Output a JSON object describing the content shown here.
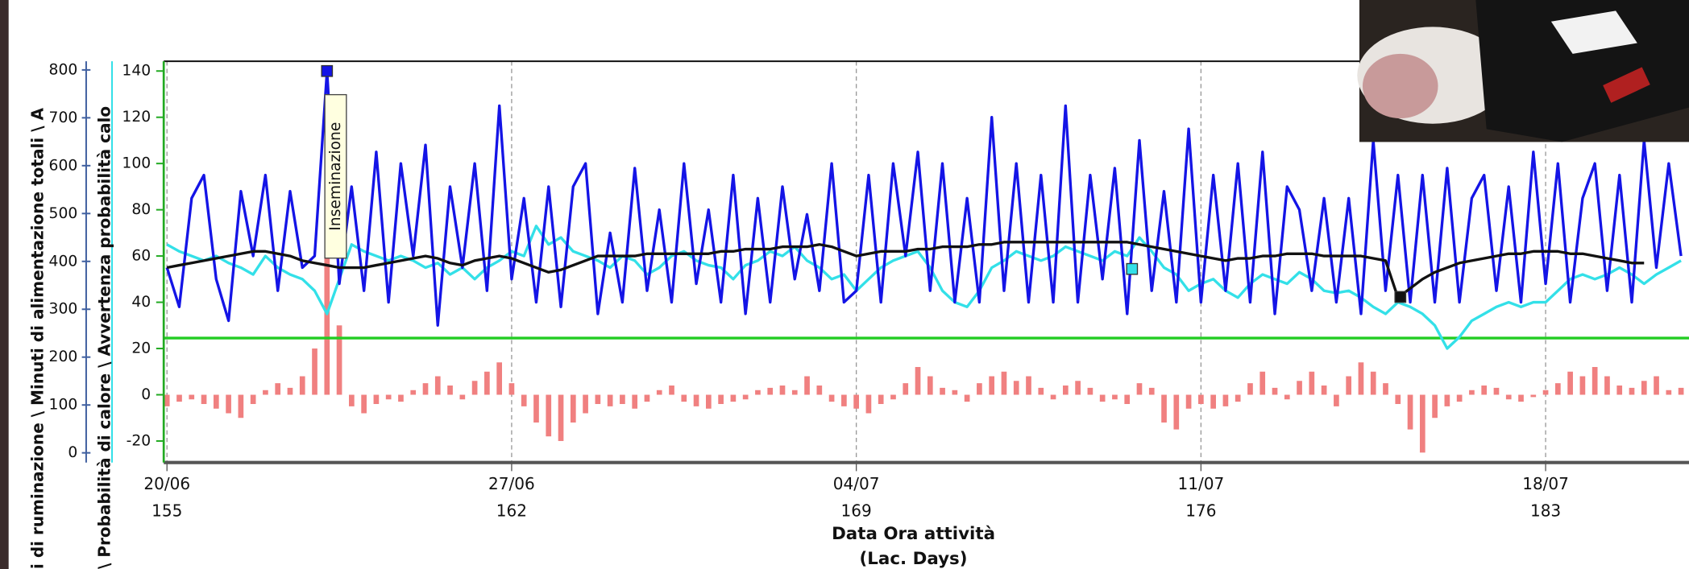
{
  "chart_data": {
    "type": "line",
    "y_title_outer": "i di ruminazione \\ Minuti di alimentazione totali \\ A",
    "y_title_inner": "\\ Probabilità di calore \\ Avvertenza probabilità calo",
    "x_title": "Data Ora attività",
    "x_subtitle": "(Lac. Days)",
    "annotation": "Inseminazione",
    "xlim": [
      154.934,
      185.912
    ],
    "xticks": [
      {
        "value": 155,
        "label": "20/06"
      },
      {
        "value": 162,
        "label": "27/06"
      },
      {
        "value": 169,
        "label": "04/07"
      },
      {
        "value": 176,
        "label": "11/07"
      },
      {
        "value": 183,
        "label": "18/07"
      }
    ],
    "xticks2": [
      155,
      162,
      169,
      176,
      183
    ],
    "ylim": [
      -29.3,
      144.2
    ],
    "yticks": [
      -20,
      0,
      20,
      40,
      60,
      80,
      100,
      120,
      140
    ],
    "y2lim": [
      -20.2,
      818
    ],
    "y2ticks": [
      0,
      100,
      200,
      300,
      400,
      500,
      600,
      700,
      800
    ],
    "grid": true,
    "reference_line": {
      "value": 24.5,
      "color": "#22cc22"
    },
    "x": [
      155,
      155.25,
      155.5,
      155.75,
      156,
      156.25,
      156.5,
      156.75,
      157,
      157.25,
      157.5,
      157.75,
      158,
      158.25,
      158.5,
      158.75,
      159,
      159.25,
      159.5,
      159.75,
      160,
      160.25,
      160.5,
      160.75,
      161,
      161.25,
      161.5,
      161.75,
      162,
      162.25,
      162.5,
      162.75,
      163,
      163.25,
      163.5,
      163.75,
      164,
      164.25,
      164.5,
      164.75,
      165,
      165.25,
      165.5,
      165.75,
      166,
      166.25,
      166.5,
      166.75,
      167,
      167.25,
      167.5,
      167.75,
      168,
      168.25,
      168.5,
      168.75,
      169,
      169.25,
      169.5,
      169.75,
      170,
      170.25,
      170.5,
      170.75,
      171,
      171.25,
      171.5,
      171.75,
      172,
      172.25,
      172.5,
      172.75,
      173,
      173.25,
      173.5,
      173.75,
      174,
      174.25,
      174.5,
      174.75,
      175,
      175.25,
      175.5,
      175.75,
      176,
      176.25,
      176.5,
      176.75,
      177,
      177.25,
      177.5,
      177.75,
      178,
      178.25,
      178.5,
      178.75,
      179,
      179.25,
      179.5,
      179.75,
      180,
      180.25,
      180.5,
      180.75,
      181,
      181.25,
      181.5,
      181.75,
      182,
      182.25,
      182.5,
      182.75,
      183,
      183.25,
      183.5,
      183.75,
      184,
      184.25,
      184.5,
      184.75,
      185,
      185.25,
      185.5,
      185.75
    ],
    "series": [
      {
        "kind": "bar",
        "color": "#f08080",
        "values": [
          -5,
          -3,
          -2,
          -4,
          -6,
          -8,
          -10,
          -4,
          2,
          5,
          3,
          8,
          20,
          59,
          30,
          -5,
          -8,
          -4,
          -2,
          -3,
          2,
          5,
          8,
          4,
          -2,
          6,
          10,
          14,
          5,
          -5,
          -12,
          -18,
          -20,
          -12,
          -8,
          -4,
          -5,
          -4,
          -6,
          -3,
          2,
          4,
          -3,
          -5,
          -6,
          -4,
          -3,
          -2,
          2,
          3,
          4,
          2,
          8,
          4,
          -3,
          -5,
          -6,
          -8,
          -4,
          -2,
          5,
          12,
          8,
          3,
          2,
          -3,
          5,
          8,
          10,
          6,
          8,
          3,
          -2,
          4,
          6,
          3,
          -3,
          -2,
          -4,
          5,
          3,
          -12,
          -15,
          -6,
          -4,
          -6,
          -5,
          -3,
          5,
          10,
          3,
          -2,
          6,
          10,
          4,
          -5,
          8,
          14,
          10,
          5,
          -4,
          -15,
          -25,
          -10,
          -5,
          -3,
          2,
          4,
          3,
          -2,
          -3,
          -1,
          2,
          5,
          10,
          8,
          12,
          8,
          4,
          3,
          6,
          8,
          2,
          3
        ]
      },
      {
        "kind": "line",
        "color": "#33e0e8",
        "values": [
          65,
          62,
          60,
          58,
          60,
          57,
          55,
          52,
          60,
          55,
          52,
          50,
          45,
          35,
          50,
          65,
          62,
          60,
          58,
          60,
          58,
          55,
          57,
          52,
          55,
          50,
          55,
          58,
          62,
          60,
          73,
          65,
          68,
          62,
          60,
          58,
          55,
          60,
          58,
          52,
          55,
          60,
          62,
          58,
          56,
          55,
          50,
          56,
          58,
          62,
          60,
          64,
          58,
          55,
          50,
          52,
          45,
          50,
          55,
          58,
          60,
          62,
          55,
          45,
          40,
          38,
          45,
          55,
          58,
          62,
          60,
          58,
          60,
          64,
          62,
          60,
          58,
          62,
          60,
          68,
          62,
          55,
          52,
          45,
          48,
          50,
          45,
          42,
          48,
          52,
          50,
          48,
          53,
          50,
          45,
          44,
          45,
          42,
          38,
          35,
          40,
          38,
          35,
          30,
          20,
          25,
          32,
          35,
          38,
          40,
          38,
          40,
          40,
          45,
          50,
          52,
          50,
          52,
          55,
          52,
          48,
          52,
          55,
          58
        ]
      },
      {
        "kind": "line",
        "color": "#1414e6",
        "values": [
          55,
          38,
          85,
          95,
          50,
          32,
          88,
          60,
          95,
          45,
          88,
          55,
          60,
          140,
          48,
          90,
          45,
          105,
          40,
          100,
          60,
          108,
          30,
          90,
          55,
          100,
          45,
          125,
          50,
          85,
          40,
          90,
          38,
          90,
          100,
          35,
          70,
          40,
          98,
          45,
          80,
          40,
          100,
          48,
          80,
          40,
          95,
          35,
          85,
          40,
          90,
          50,
          78,
          45,
          100,
          40,
          45,
          95,
          40,
          100,
          60,
          105,
          45,
          100,
          40,
          85,
          40,
          120,
          45,
          100,
          40,
          95,
          40,
          125,
          40,
          95,
          50,
          98,
          35,
          110,
          45,
          88,
          40,
          115,
          40,
          95,
          45,
          100,
          40,
          105,
          35,
          90,
          80,
          45,
          85,
          40,
          85,
          35,
          110,
          45,
          95,
          40,
          95,
          40,
          98,
          40,
          85,
          95,
          45,
          90,
          40,
          105,
          48,
          100,
          40,
          85,
          100,
          45,
          95,
          40,
          110,
          55,
          100,
          60
        ]
      },
      {
        "kind": "line",
        "color": "#111111",
        "values": [
          55,
          56,
          57,
          58,
          59,
          60,
          61,
          62,
          62,
          61,
          60,
          58,
          57,
          56,
          55,
          55,
          55,
          56,
          57,
          58,
          59,
          60,
          59,
          57,
          56,
          58,
          59,
          60,
          59,
          57,
          55,
          53,
          54,
          56,
          58,
          60,
          60,
          60,
          60,
          61,
          61,
          61,
          61,
          61,
          61,
          62,
          62,
          63,
          63,
          63,
          64,
          64,
          64,
          65,
          64,
          62,
          60,
          61,
          62,
          62,
          62,
          63,
          63,
          64,
          64,
          64,
          65,
          65,
          66,
          66,
          66,
          66,
          66,
          66,
          66,
          66,
          66,
          66,
          66,
          65,
          64,
          63,
          62,
          61,
          60,
          59,
          58,
          59,
          59,
          60,
          60,
          61,
          61,
          61,
          60,
          60,
          60,
          60,
          59,
          58,
          42,
          46,
          50,
          53,
          55,
          57,
          58,
          59,
          60,
          61,
          61,
          62,
          62,
          62,
          61,
          61,
          60,
          59,
          58,
          57,
          57,
          null,
          null,
          null
        ]
      }
    ],
    "markers": [
      {
        "x": 158.25,
        "y": 140,
        "color": "#1414e6"
      },
      {
        "x": 174.6,
        "y": 54.4,
        "color": "#33e0e8"
      },
      {
        "x": 180.05,
        "y": 42.3,
        "color": "#111111"
      }
    ]
  }
}
